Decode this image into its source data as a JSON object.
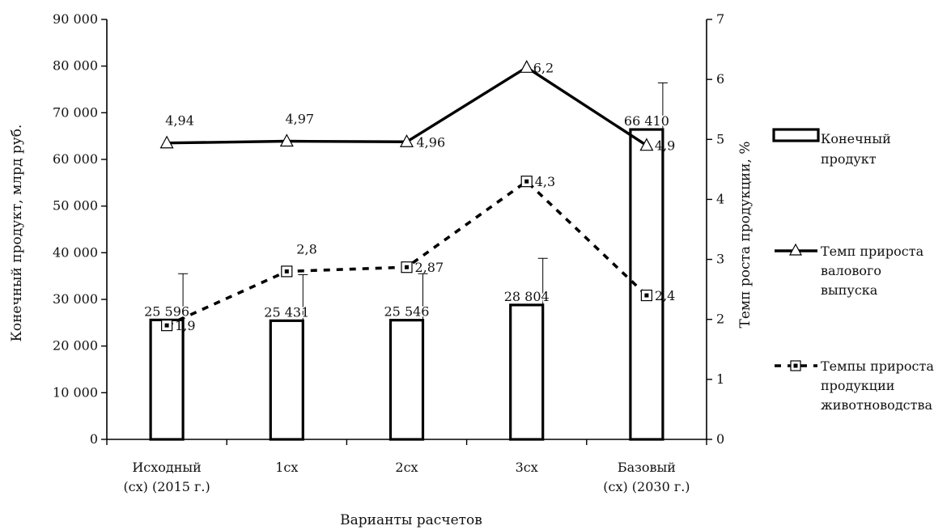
{
  "chart_data": {
    "type": "bar",
    "xlabel": "Варианты расчетов",
    "ylabel_left": "Конечный продукт, млрд  руб.",
    "ylabel_right": "Темп роста продукции, %",
    "ylim_left": [
      0,
      90000
    ],
    "ylim_right": [
      0,
      7
    ],
    "yticks_left": [
      "0",
      "10 000",
      "20 000",
      "30 000",
      "40 000",
      "50 000",
      "60 000",
      "70 000",
      "80 000",
      "90 000"
    ],
    "yticks_right": [
      "0",
      "1",
      "2",
      "3",
      "4",
      "5",
      "6",
      "7"
    ],
    "categories": [
      [
        "Исходный",
        "(сх) (2015 г.)"
      ],
      [
        "1сх"
      ],
      [
        "2сх"
      ],
      [
        "3сх"
      ],
      [
        "Базовый",
        "(сх) (2030 г.)"
      ]
    ],
    "grid": false,
    "legend_position": "right",
    "bars": {
      "legend": [
        "Конечный",
        "продукт"
      ],
      "values": [
        25596,
        25431,
        25546,
        28804,
        66410
      ],
      "labels": [
        "25 596",
        "25 431",
        "25 546",
        "28 804",
        "66 410"
      ],
      "error_upper": [
        35500,
        35300,
        35500,
        38800,
        76400
      ],
      "axis": "left"
    },
    "series": [
      {
        "legend": [
          "Темп прироста",
          "валового",
          "выпуска"
        ],
        "axis": "right",
        "style": "solid",
        "marker": "triangle",
        "values": [
          4.94,
          4.97,
          4.96,
          6.2,
          4.9
        ],
        "labels": [
          "4,94",
          "4,97",
          "4,96",
          "6,2",
          "4,9"
        ]
      },
      {
        "legend": [
          "Темпы прироста",
          "продукции",
          "животноводства"
        ],
        "axis": "right",
        "style": "dashed",
        "marker": "square",
        "values": [
          1.9,
          2.8,
          2.87,
          4.3,
          2.4
        ],
        "labels": [
          "1,9",
          "2,8",
          "2,87",
          "4,3",
          "2,4"
        ]
      }
    ]
  }
}
